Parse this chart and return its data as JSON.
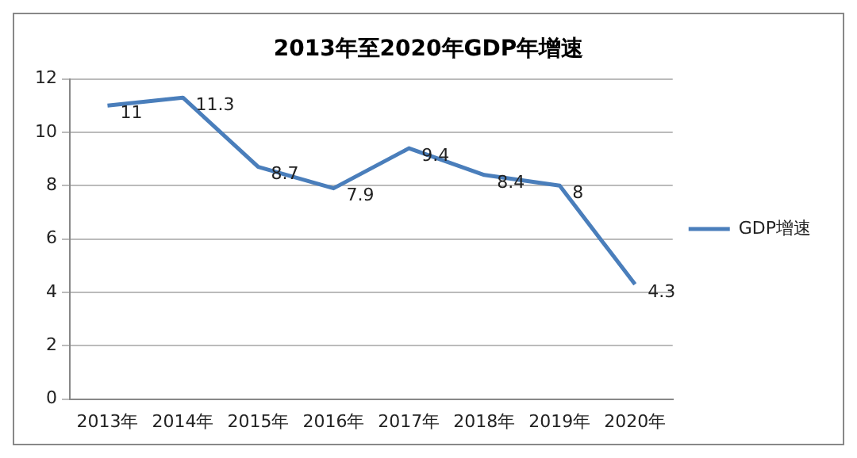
{
  "chart_data": {
    "type": "line",
    "title": "2013年至2020年GDP年增速",
    "categories": [
      "2013年",
      "2014年",
      "2015年",
      "2016年",
      "2017年",
      "2018年",
      "2019年",
      "2020年"
    ],
    "series": [
      {
        "name": "GDP增速",
        "color": "#4a7ebb",
        "values": [
          11,
          11.3,
          8.7,
          7.9,
          9.4,
          8.4,
          8,
          4.3
        ]
      }
    ],
    "ylim": [
      0,
      12
    ],
    "yticks": [
      0,
      2,
      4,
      6,
      8,
      10,
      12
    ],
    "grid": "y",
    "legend": "right",
    "data_labels": true,
    "marker": "none"
  }
}
